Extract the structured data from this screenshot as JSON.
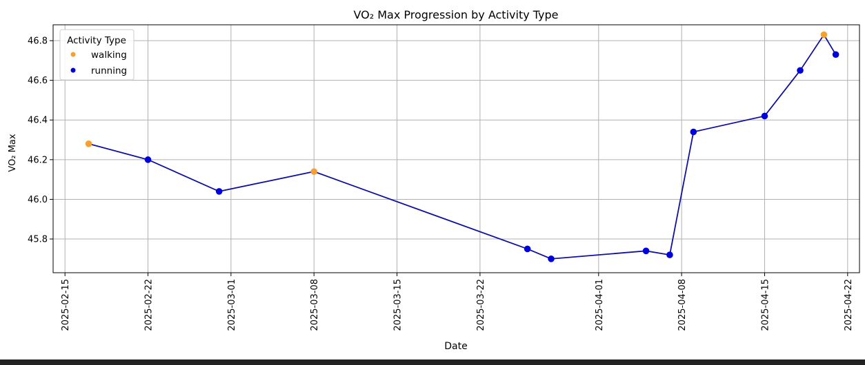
{
  "chart_data": {
    "type": "line",
    "title": "VO₂ Max Progression by Activity Type",
    "xlabel": "Date",
    "ylabel": "VO₂ Max",
    "x_type": "date",
    "xlim": [
      "2025-02-14",
      "2025-04-23"
    ],
    "ylim": [
      45.63,
      46.88
    ],
    "x_ticks": [
      "2025-02-15",
      "2025-02-22",
      "2025-03-01",
      "2025-03-08",
      "2025-03-15",
      "2025-03-22",
      "2025-04-01",
      "2025-04-08",
      "2025-04-15",
      "2025-04-22"
    ],
    "y_ticks": [
      "45.8",
      "46.0",
      "46.2",
      "46.4",
      "46.6",
      "46.8"
    ],
    "grid": true,
    "legend": {
      "title": "Activity Type",
      "placement": "top-left",
      "entries": [
        {
          "label": "walking",
          "color": "#f5a033"
        },
        {
          "label": "running",
          "color": "#0000dd"
        }
      ]
    },
    "line_color": "#1010a0",
    "points": [
      {
        "x": "2025-02-17",
        "y": 46.28,
        "activity": "walking"
      },
      {
        "x": "2025-02-22",
        "y": 46.2,
        "activity": "running"
      },
      {
        "x": "2025-02-28",
        "y": 46.04,
        "activity": "running"
      },
      {
        "x": "2025-03-08",
        "y": 46.14,
        "activity": "walking"
      },
      {
        "x": "2025-03-26",
        "y": 45.75,
        "activity": "running"
      },
      {
        "x": "2025-03-28",
        "y": 45.7,
        "activity": "running"
      },
      {
        "x": "2025-04-05",
        "y": 45.74,
        "activity": "running"
      },
      {
        "x": "2025-04-07",
        "y": 45.72,
        "activity": "running"
      },
      {
        "x": "2025-04-09",
        "y": 46.34,
        "activity": "running"
      },
      {
        "x": "2025-04-15",
        "y": 46.42,
        "activity": "running"
      },
      {
        "x": "2025-04-18",
        "y": 46.65,
        "activity": "running"
      },
      {
        "x": "2025-04-20",
        "y": 46.83,
        "activity": "walking"
      },
      {
        "x": "2025-04-21",
        "y": 46.73,
        "activity": "running"
      }
    ]
  }
}
